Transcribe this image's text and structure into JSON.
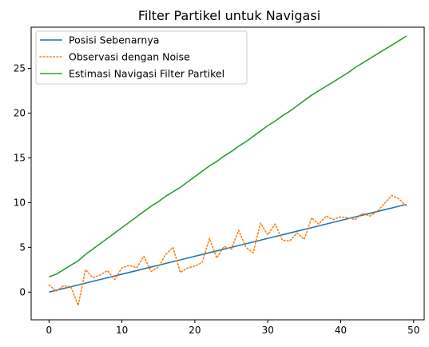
{
  "chart_data": {
    "type": "line",
    "title": "Filter Partikel untuk Navigasi",
    "xlabel": "",
    "ylabel": "",
    "xlim": [
      -2.45,
      51.45
    ],
    "ylim": [
      -3.1,
      29.6
    ],
    "xticks": [
      0,
      10,
      20,
      30,
      40,
      50
    ],
    "yticks": [
      0,
      5,
      10,
      15,
      20,
      25
    ],
    "grid": false,
    "legend_position": "top-left",
    "x": [
      0,
      1,
      2,
      3,
      4,
      5,
      6,
      7,
      8,
      9,
      10,
      11,
      12,
      13,
      14,
      15,
      16,
      17,
      18,
      19,
      20,
      21,
      22,
      23,
      24,
      25,
      26,
      27,
      28,
      29,
      30,
      31,
      32,
      33,
      34,
      35,
      36,
      37,
      38,
      39,
      40,
      41,
      42,
      43,
      44,
      45,
      46,
      47,
      48,
      49
    ],
    "series": [
      {
        "name": "Posisi Sebenarnya",
        "color": "#1f77b4",
        "style": "solid",
        "values": [
          0,
          0.2,
          0.4,
          0.6,
          0.8,
          1,
          1.2,
          1.4,
          1.6,
          1.8,
          2,
          2.2,
          2.4,
          2.6,
          2.8,
          3,
          3.2,
          3.4,
          3.6,
          3.8,
          4,
          4.2,
          4.4,
          4.6,
          4.8,
          5,
          5.2,
          5.4,
          5.6,
          5.8,
          6,
          6.2,
          6.4,
          6.6,
          6.8,
          7,
          7.2,
          7.4,
          7.6,
          7.8,
          8,
          8.2,
          8.4,
          8.6,
          8.8,
          9,
          9.2,
          9.4,
          9.6,
          9.8
        ]
      },
      {
        "name": "Observasi dengan Noise",
        "color": "#ff7f0e",
        "style": "dotted",
        "values": [
          0.8,
          0.1,
          0.7,
          0.6,
          -1.5,
          2.5,
          1.6,
          1.9,
          2.4,
          1.4,
          2.7,
          3.0,
          2.7,
          4.0,
          2.3,
          2.8,
          4.2,
          5.0,
          2.2,
          2.7,
          2.9,
          3.3,
          6.0,
          3.8,
          5.1,
          4.8,
          6.9,
          5.0,
          4.4,
          7.7,
          6.4,
          7.6,
          5.8,
          5.7,
          6.6,
          5.9,
          8.3,
          7.6,
          8.5,
          8.1,
          8.4,
          8.3,
          8.1,
          8.8,
          8.5,
          9.0,
          9.9,
          10.8,
          10.4,
          9.6
        ]
      },
      {
        "name": "Estimasi Navigasi Filter Partikel",
        "color": "#2ca02c",
        "style": "solid",
        "values": [
          1.7,
          2.0,
          2.5,
          3.0,
          3.5,
          4.2,
          4.8,
          5.4,
          6.0,
          6.6,
          7.2,
          7.8,
          8.4,
          9.0,
          9.6,
          10.1,
          10.7,
          11.2,
          11.7,
          12.3,
          12.9,
          13.5,
          14.1,
          14.6,
          15.2,
          15.7,
          16.3,
          16.8,
          17.4,
          18.0,
          18.6,
          19.1,
          19.7,
          20.2,
          20.8,
          21.4,
          22.0,
          22.5,
          23.0,
          23.5,
          24.0,
          24.5,
          25.1,
          25.6,
          26.1,
          26.6,
          27.1,
          27.6,
          28.1,
          28.6
        ]
      }
    ]
  }
}
